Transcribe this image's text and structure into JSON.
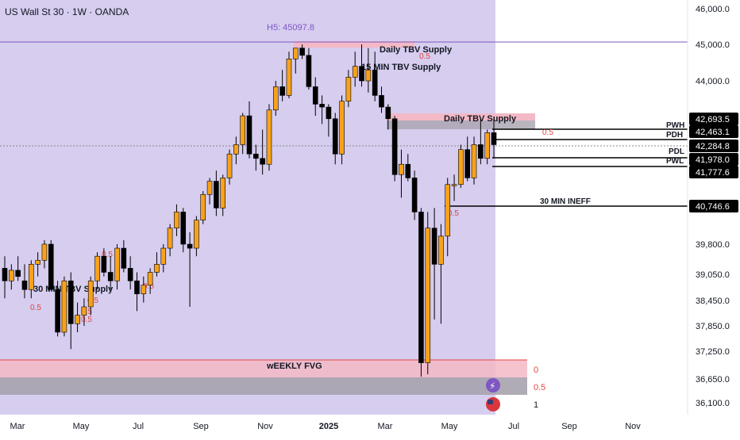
{
  "chart_title": "US Wall St 30 · 1W · OANDA",
  "colors": {
    "bull": "#f7a21b",
    "bear": "#000000",
    "highlight_zone": "#d6cdef",
    "pink_zone": "#f3b9c6",
    "gray_zone": "#a7a3ae",
    "red_text": "#e2463f",
    "purple_text": "#7e57c2",
    "level_line": "#000000"
  },
  "annotations": {
    "h5": "H5: 45097.8",
    "daily_supply_1": "Daily TBV Supply",
    "min_supply": "15 MIN TBV Supply",
    "daily_supply_2": "Daily TBV Supply",
    "min30_supply": "30 MIN TBV Supply",
    "fvg": "wEEKLY FVG",
    "ineff": "30 MIN INEFF",
    "pwh": "PWH",
    "pdh": "PDH",
    "pdl": "PDL",
    "pwl": "PWL",
    "fib_0": "0",
    "fib_05": "0.5",
    "fib_1": "1",
    "half": "0.5"
  },
  "chart_data": {
    "type": "candlestick",
    "title": "US Wall St 30 · 1W · OANDA",
    "x_tick_labels": [
      "Mar",
      "May",
      "Jul",
      "Sep",
      "Nov",
      "2025",
      "Mar",
      "May",
      "Jul",
      "Sep",
      "Nov"
    ],
    "y_tick_labels": [
      "46,000.0",
      "45,000.0",
      "44,000.0",
      "39,800.0",
      "39,050.0",
      "38,450.0",
      "37,850.0",
      "37,250.0",
      "36,650.0",
      "36,100.0"
    ],
    "price_labels": [
      "42,693.5",
      "42,463.1",
      "42,284.8",
      "41,978.0",
      "41,777.6",
      "40,746.6"
    ],
    "level_labels": [
      "PWH",
      "PDH",
      "PDL",
      "PWL",
      "30 MIN INEFF"
    ],
    "candles": [
      {
        "o": 39200,
        "h": 39500,
        "l": 38500,
        "c": 38900
      },
      {
        "o": 38900,
        "h": 39300,
        "l": 38700,
        "c": 39150
      },
      {
        "o": 39150,
        "h": 39500,
        "l": 38900,
        "c": 39000
      },
      {
        "o": 38900,
        "h": 39300,
        "l": 38500,
        "c": 38700
      },
      {
        "o": 38700,
        "h": 39400,
        "l": 38500,
        "c": 39300
      },
      {
        "o": 39300,
        "h": 39600,
        "l": 39000,
        "c": 39400
      },
      {
        "o": 39400,
        "h": 39900,
        "l": 39200,
        "c": 39800
      },
      {
        "o": 39800,
        "h": 39900,
        "l": 38700,
        "c": 38700
      },
      {
        "o": 38700,
        "h": 38900,
        "l": 37600,
        "c": 37700
      },
      {
        "o": 37700,
        "h": 39000,
        "l": 37600,
        "c": 38900
      },
      {
        "o": 38900,
        "h": 39100,
        "l": 37300,
        "c": 37900
      },
      {
        "o": 37900,
        "h": 38400,
        "l": 37700,
        "c": 38100
      },
      {
        "o": 38100,
        "h": 38500,
        "l": 37850,
        "c": 38300
      },
      {
        "o": 38300,
        "h": 39000,
        "l": 38100,
        "c": 38900
      },
      {
        "o": 38900,
        "h": 39600,
        "l": 38700,
        "c": 39500
      },
      {
        "o": 39500,
        "h": 39700,
        "l": 39000,
        "c": 39100
      },
      {
        "o": 39100,
        "h": 39500,
        "l": 38700,
        "c": 38900
      },
      {
        "o": 38900,
        "h": 39800,
        "l": 38700,
        "c": 39700
      },
      {
        "o": 39700,
        "h": 39900,
        "l": 39100,
        "c": 39200
      },
      {
        "o": 39200,
        "h": 39500,
        "l": 38700,
        "c": 38900
      },
      {
        "o": 38900,
        "h": 39100,
        "l": 38200,
        "c": 38600
      },
      {
        "o": 38600,
        "h": 39000,
        "l": 38400,
        "c": 38800
      },
      {
        "o": 38800,
        "h": 39200,
        "l": 38600,
        "c": 39100
      },
      {
        "o": 39100,
        "h": 39600,
        "l": 39000,
        "c": 39300
      },
      {
        "o": 39300,
        "h": 39800,
        "l": 39100,
        "c": 39700
      },
      {
        "o": 39700,
        "h": 40300,
        "l": 39500,
        "c": 40200
      },
      {
        "o": 40200,
        "h": 40800,
        "l": 40000,
        "c": 40600
      },
      {
        "o": 40600,
        "h": 40700,
        "l": 39600,
        "c": 39800
      },
      {
        "o": 39800,
        "h": 40100,
        "l": 38300,
        "c": 39700
      },
      {
        "o": 39700,
        "h": 40500,
        "l": 39500,
        "c": 40400
      },
      {
        "o": 40400,
        "h": 41200,
        "l": 40300,
        "c": 41100
      },
      {
        "o": 41100,
        "h": 41600,
        "l": 40800,
        "c": 41500
      },
      {
        "o": 41500,
        "h": 41800,
        "l": 40500,
        "c": 40700
      },
      {
        "o": 40700,
        "h": 41700,
        "l": 40500,
        "c": 41600
      },
      {
        "o": 41600,
        "h": 42200,
        "l": 41400,
        "c": 42100
      },
      {
        "o": 42100,
        "h": 42400,
        "l": 41900,
        "c": 42300
      },
      {
        "o": 42300,
        "h": 42900,
        "l": 42100,
        "c": 42800
      },
      {
        "o": 42800,
        "h": 43300,
        "l": 42000,
        "c": 42100
      },
      {
        "o": 42100,
        "h": 42300,
        "l": 41800,
        "c": 42000
      },
      {
        "o": 42000,
        "h": 42500,
        "l": 41700,
        "c": 41900
      },
      {
        "o": 41900,
        "h": 43200,
        "l": 41800,
        "c": 43000
      },
      {
        "o": 43000,
        "h": 44000,
        "l": 42800,
        "c": 43800
      },
      {
        "o": 43800,
        "h": 44300,
        "l": 43300,
        "c": 43500
      },
      {
        "o": 43500,
        "h": 44800,
        "l": 43400,
        "c": 44600
      },
      {
        "o": 44600,
        "h": 44900,
        "l": 44200,
        "c": 44900
      },
      {
        "o": 44900,
        "h": 45000,
        "l": 44600,
        "c": 44700
      },
      {
        "o": 44700,
        "h": 44900,
        "l": 43700,
        "c": 43800
      },
      {
        "o": 43800,
        "h": 44100,
        "l": 42800,
        "c": 43200
      },
      {
        "o": 43200,
        "h": 43500,
        "l": 42600,
        "c": 43100
      },
      {
        "o": 43100,
        "h": 43200,
        "l": 42400,
        "c": 42700
      },
      {
        "o": 42700,
        "h": 42900,
        "l": 41900,
        "c": 42100
      },
      {
        "o": 42100,
        "h": 43500,
        "l": 41900,
        "c": 43300
      },
      {
        "o": 43300,
        "h": 44300,
        "l": 43100,
        "c": 44100
      },
      {
        "o": 44100,
        "h": 44800,
        "l": 43800,
        "c": 44400
      },
      {
        "o": 44400,
        "h": 45000,
        "l": 43800,
        "c": 44000
      },
      {
        "o": 44000,
        "h": 44900,
        "l": 43600,
        "c": 44300
      },
      {
        "o": 44300,
        "h": 44800,
        "l": 43300,
        "c": 43500
      },
      {
        "o": 43500,
        "h": 43800,
        "l": 42900,
        "c": 43100
      },
      {
        "o": 43100,
        "h": 43200,
        "l": 42500,
        "c": 42700
      },
      {
        "o": 42700,
        "h": 42800,
        "l": 41500,
        "c": 41700
      },
      {
        "o": 41700,
        "h": 42200,
        "l": 41000,
        "c": 41900
      },
      {
        "o": 41900,
        "h": 42100,
        "l": 41500,
        "c": 41600
      },
      {
        "o": 41600,
        "h": 41800,
        "l": 40400,
        "c": 40600
      },
      {
        "o": 40600,
        "h": 40700,
        "l": 36700,
        "c": 37000
      },
      {
        "o": 37000,
        "h": 40600,
        "l": 36750,
        "c": 40200
      },
      {
        "o": 40200,
        "h": 40700,
        "l": 38000,
        "c": 39300
      },
      {
        "o": 39300,
        "h": 40300,
        "l": 37900,
        "c": 40000
      },
      {
        "o": 40000,
        "h": 41600,
        "l": 39500,
        "c": 41400
      },
      {
        "o": 41400,
        "h": 41700,
        "l": 40900,
        "c": 41400
      },
      {
        "o": 41400,
        "h": 42300,
        "l": 41300,
        "c": 42200
      },
      {
        "o": 42200,
        "h": 42400,
        "l": 41500,
        "c": 41600
      },
      {
        "o": 41600,
        "h": 42400,
        "l": 41400,
        "c": 42300
      },
      {
        "o": 42300,
        "h": 42700,
        "l": 41900,
        "c": 42000
      },
      {
        "o": 42000,
        "h": 42500,
        "l": 41900,
        "c": 42450
      },
      {
        "o": 42450,
        "h": 42700,
        "l": 42000,
        "c": 42300
      }
    ]
  }
}
